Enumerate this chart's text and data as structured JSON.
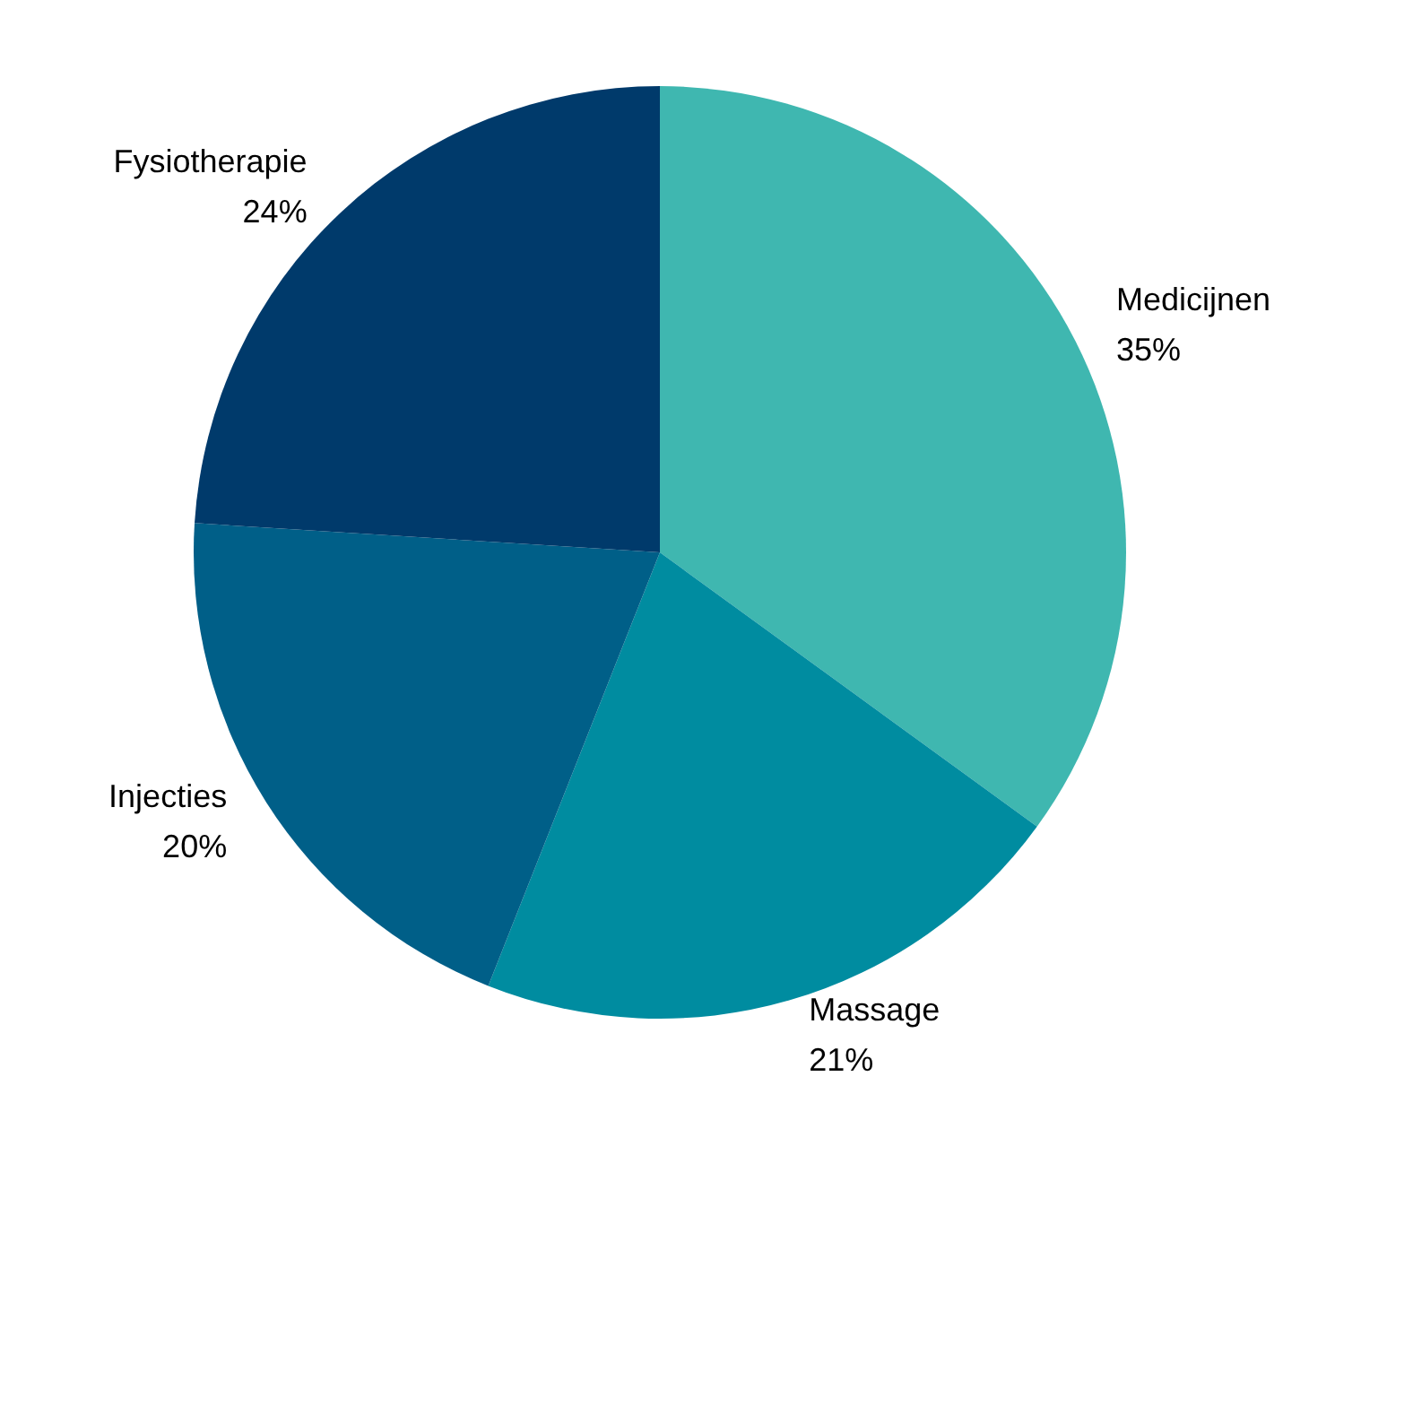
{
  "chart_data": {
    "type": "pie",
    "categories": [
      "Medicijnen",
      "Massage",
      "Injecties",
      "Fysiotherapie"
    ],
    "values": [
      35,
      21,
      20,
      24
    ],
    "value_labels": [
      "35%",
      "21%",
      "20%",
      "24%"
    ],
    "colors": [
      "#3fb7b0",
      "#008ca0",
      "#005f88",
      "#003a6b"
    ],
    "legend": false
  }
}
